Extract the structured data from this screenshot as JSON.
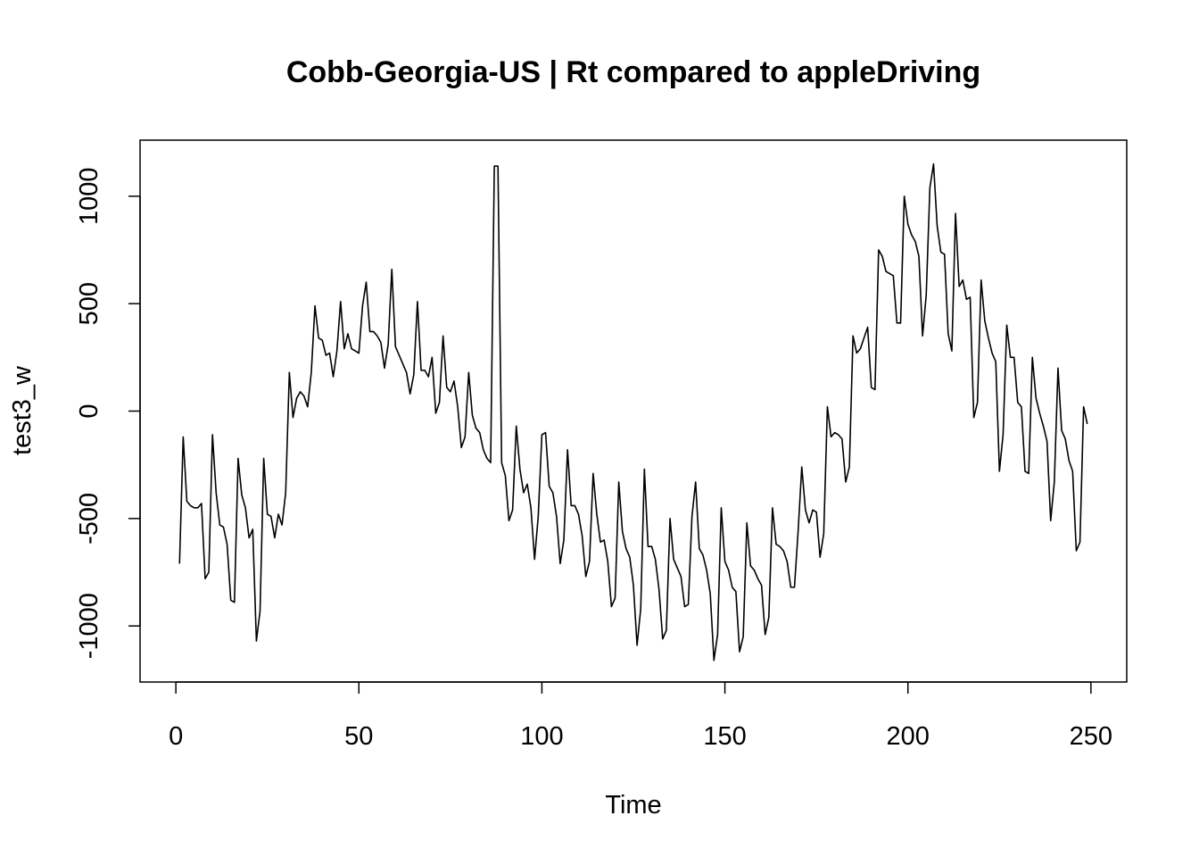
{
  "chart_data": {
    "type": "line",
    "title": "Cobb-Georgia-US | Rt compared to appleDriving",
    "xlabel": "Time",
    "ylabel": "test3_w",
    "xlim": [
      1,
      249
    ],
    "ylim": [
      -1160,
      1160
    ],
    "x_ticks": [
      0,
      50,
      100,
      150,
      200,
      250
    ],
    "y_ticks": [
      -1000,
      -500,
      0,
      500,
      1000
    ],
    "grid": false,
    "legend": "none",
    "line_color": "#000000",
    "series": [
      {
        "values": [
          -710,
          -120,
          -420,
          -440,
          -450,
          -450,
          -430,
          -780,
          -750,
          -110,
          -380,
          -530,
          -540,
          -620,
          -880,
          -890,
          -220,
          -390,
          -450,
          -590,
          -550,
          -1070,
          -930,
          -220,
          -480,
          -490,
          -590,
          -480,
          -530,
          -380,
          180,
          -30,
          60,
          90,
          70,
          20,
          180,
          490,
          340,
          330,
          260,
          270,
          160,
          280,
          510,
          290,
          360,
          290,
          280,
          270,
          490,
          600,
          370,
          370,
          350,
          320,
          200,
          310,
          660,
          300,
          260,
          220,
          180,
          80,
          170,
          510,
          190,
          190,
          160,
          250,
          -10,
          40,
          350,
          110,
          90,
          140,
          20,
          -170,
          -120,
          180,
          -20,
          -80,
          -100,
          -180,
          -220,
          -240,
          1140,
          1140,
          -240,
          -300,
          -510,
          -460,
          -70,
          -270,
          -380,
          -340,
          -450,
          -690,
          -490,
          -110,
          -100,
          -350,
          -380,
          -490,
          -710,
          -600,
          -180,
          -440,
          -440,
          -480,
          -580,
          -770,
          -700,
          -290,
          -480,
          -610,
          -600,
          -700,
          -910,
          -870,
          -330,
          -560,
          -640,
          -680,
          -810,
          -1090,
          -920,
          -270,
          -630,
          -630,
          -690,
          -830,
          -1060,
          -1020,
          -500,
          -690,
          -730,
          -770,
          -910,
          -900,
          -490,
          -330,
          -640,
          -670,
          -740,
          -850,
          -1160,
          -1040,
          -450,
          -700,
          -740,
          -820,
          -840,
          -1120,
          -1050,
          -520,
          -720,
          -740,
          -780,
          -810,
          -1040,
          -960,
          -450,
          -620,
          -630,
          -650,
          -700,
          -820,
          -820,
          -560,
          -260,
          -460,
          -520,
          -460,
          -470,
          -680,
          -570,
          20,
          -120,
          -100,
          -110,
          -130,
          -330,
          -260,
          350,
          270,
          290,
          340,
          390,
          110,
          100,
          750,
          720,
          650,
          640,
          630,
          410,
          410,
          1000,
          870,
          820,
          790,
          720,
          350,
          540,
          1040,
          1150,
          860,
          740,
          730,
          360,
          280,
          920,
          580,
          610,
          520,
          530,
          -30,
          40,
          610,
          420,
          340,
          270,
          230,
          -280,
          -110,
          400,
          250,
          250,
          40,
          20,
          -280,
          -290,
          250,
          60,
          -10,
          -70,
          -140,
          -510,
          -330,
          200,
          -90,
          -130,
          -230,
          -280,
          -650,
          -610,
          20,
          -60
        ]
      }
    ]
  }
}
